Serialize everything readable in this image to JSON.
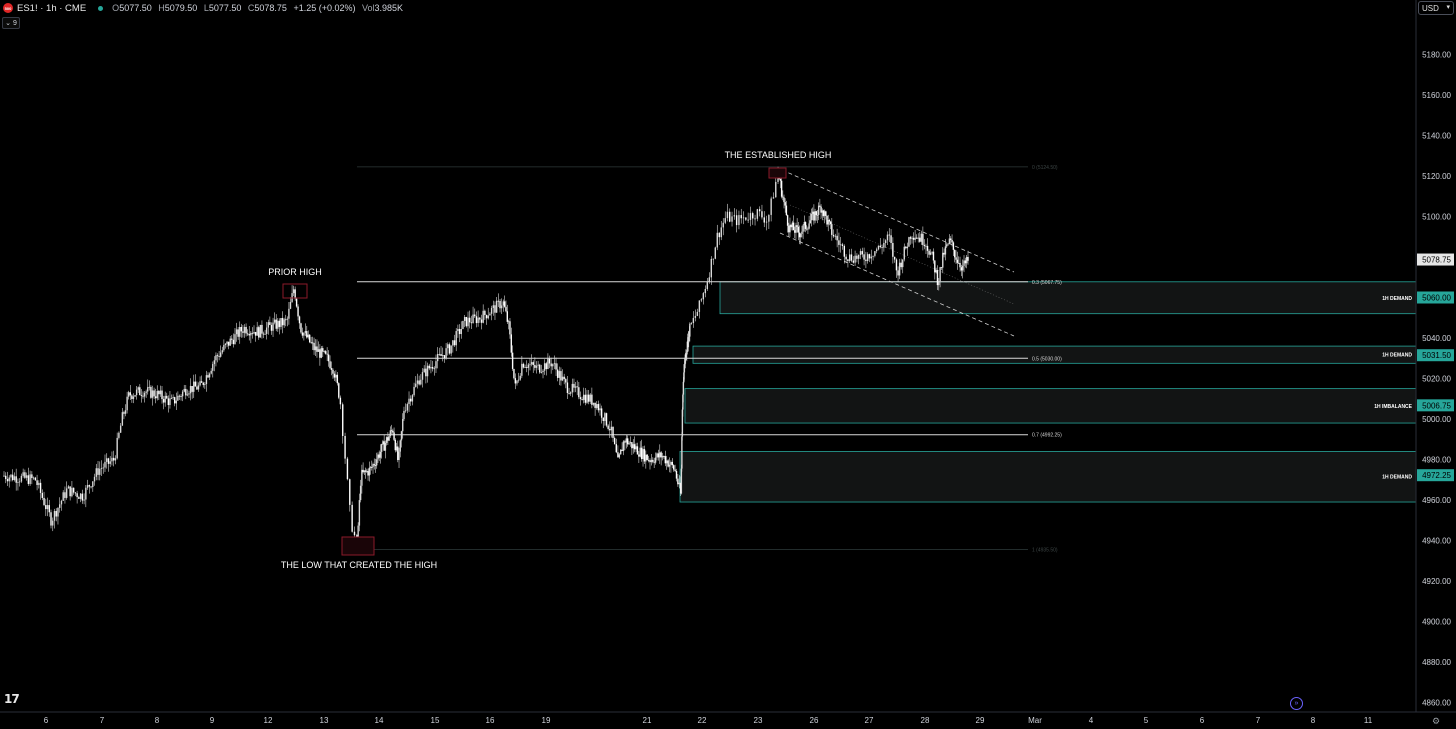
{
  "header": {
    "exchange_badge": "500",
    "symbol": "ES1! · 1h · CME",
    "open_label": "O",
    "open": "5077.50",
    "high_label": "H",
    "high": "5079.50",
    "low_label": "L",
    "low": "5077.50",
    "close_label": "C",
    "close": "5078.75",
    "change": "+1.25 (+0.02%)",
    "volume_label": "Vol",
    "volume": "3.985K",
    "indicator_toggle": "⌄ 9"
  },
  "currency": "USD",
  "colors": {
    "background": "#000000",
    "candles": "#d9d9d9",
    "zone_border": "#26a69a",
    "zone_fill": "#121414",
    "zone_badge": "#26a69a",
    "price_badge": "#e6e6e6",
    "fib_line": "#d9d9d9",
    "marker": "#8b1a2a"
  },
  "chart_data": {
    "type": "candlestick",
    "symbol": "ES1!",
    "interval": "1h",
    "y_axis": {
      "range": [
        4860,
        5190
      ],
      "ticks": [
        "5180.00",
        "5160.00",
        "5140.00",
        "5120.00",
        "5100.00",
        "5040.00",
        "5020.00",
        "5000.00",
        "4980.00",
        "4960.00",
        "4940.00",
        "4920.00",
        "4900.00",
        "4880.00",
        "4860.00"
      ]
    },
    "x_axis": {
      "labels": [
        "6",
        "7",
        "8",
        "9",
        "12",
        "13",
        "14",
        "15",
        "16",
        "19",
        "21",
        "22",
        "23",
        "26",
        "27",
        "28",
        "29",
        "Mar",
        "4",
        "5",
        "6",
        "7",
        "8",
        "11"
      ]
    },
    "last_price": "5078.75",
    "price_path": [
      [
        0,
        4972
      ],
      [
        4,
        4970
      ],
      [
        6,
        4950
      ],
      [
        8,
        4965
      ],
      [
        10,
        4962
      ],
      [
        12,
        4975
      ],
      [
        14,
        4980
      ],
      [
        15,
        5000
      ],
      [
        16,
        5012
      ],
      [
        18,
        5014
      ],
      [
        20,
        5012
      ],
      [
        22,
        5008
      ],
      [
        24,
        5015
      ],
      [
        26,
        5016
      ],
      [
        28,
        5030
      ],
      [
        30,
        5038
      ],
      [
        32,
        5045
      ],
      [
        34,
        5043
      ],
      [
        36,
        5046
      ],
      [
        38,
        5048
      ],
      [
        39,
        5065
      ],
      [
        40,
        5045
      ],
      [
        42,
        5035
      ],
      [
        44,
        5030
      ],
      [
        45,
        5025
      ],
      [
        46,
        5010
      ],
      [
        46.5,
        4980
      ],
      [
        47,
        4950
      ],
      [
        47.6,
        4937
      ],
      [
        48.3,
        4972
      ],
      [
        50,
        4975
      ],
      [
        52,
        4985
      ],
      [
        54,
        4995
      ],
      [
        55,
        4978
      ],
      [
        56,
        5005
      ],
      [
        58,
        5020
      ],
      [
        60,
        5028
      ],
      [
        62,
        5035
      ],
      [
        64,
        5048
      ],
      [
        66,
        5050
      ],
      [
        68,
        5055
      ],
      [
        69,
        5058
      ],
      [
        70,
        5045
      ],
      [
        71,
        5015
      ],
      [
        72,
        5028
      ],
      [
        74,
        5025
      ],
      [
        76,
        5028
      ],
      [
        78,
        5016
      ],
      [
        80,
        5012
      ],
      [
        82,
        5008
      ],
      [
        84,
        4995
      ],
      [
        85,
        4978
      ],
      [
        86,
        4990
      ],
      [
        88,
        4985
      ],
      [
        90,
        4980
      ],
      [
        92,
        4982
      ],
      [
        94,
        4975
      ],
      [
        95,
        4962
      ],
      [
        95.5,
        5000
      ],
      [
        96,
        5020
      ],
      [
        97,
        5032
      ],
      [
        98,
        5038
      ],
      [
        99,
        5045
      ],
      [
        100,
        5055
      ],
      [
        101,
        5070
      ],
      [
        102,
        5090
      ],
      [
        103,
        5100
      ],
      [
        104,
        5098
      ],
      [
        106,
        5102
      ],
      [
        107,
        5098
      ],
      [
        108,
        5122
      ],
      [
        109,
        5108
      ],
      [
        110,
        5095
      ],
      [
        112,
        5092
      ],
      [
        114,
        5098
      ],
      [
        116,
        5105
      ],
      [
        118,
        5092
      ],
      [
        120,
        5080
      ],
      [
        122,
        5080
      ],
      [
        124,
        5085
      ],
      [
        125,
        5090
      ],
      [
        126,
        5072
      ],
      [
        127,
        5082
      ],
      [
        128,
        5092
      ],
      [
        130,
        5088
      ],
      [
        131,
        5080
      ],
      [
        132,
        5068
      ],
      [
        133,
        5082
      ],
      [
        134,
        5088
      ],
      [
        135,
        5080
      ],
      [
        136,
        5075
      ],
      [
        137,
        5078
      ]
    ],
    "zones": [
      {
        "label": "1H DEMAND",
        "top": 5067.75,
        "bottom": 5052.0,
        "badge": "5060.00",
        "badge_price": 5060.0
      },
      {
        "label": "1H DEMAND",
        "top": 5036.0,
        "bottom": 5027.5,
        "badge": "5031.50",
        "badge_price": 5031.5
      },
      {
        "label": "1H IMBALANCE",
        "top": 5015.0,
        "bottom": 4998.0,
        "badge": "5006.75",
        "badge_price": 5006.75
      },
      {
        "label": "1H DEMAND",
        "top": 4984.0,
        "bottom": 4959.0,
        "badge": "4972.25",
        "badge_price": 4972.25
      }
    ],
    "fib_levels": [
      {
        "label": "0 (5124.50)",
        "price": 5124.5,
        "faint": true
      },
      {
        "label": "0.3 (5067.75)",
        "price": 5067.75,
        "faint": false
      },
      {
        "label": "0.5 (5030.00)",
        "price": 5030.0,
        "faint": false
      },
      {
        "label": "0.7 (4992.25)",
        "price": 4992.25,
        "faint": false
      },
      {
        "label": "1 (4935.50)",
        "price": 4935.5,
        "faint": true
      }
    ],
    "annotations": [
      {
        "text": "THE ESTABLISHED HIGH"
      },
      {
        "text": "PRIOR HIGH"
      },
      {
        "text": "THE LOW THAT CREATED THE HIGH"
      }
    ]
  }
}
